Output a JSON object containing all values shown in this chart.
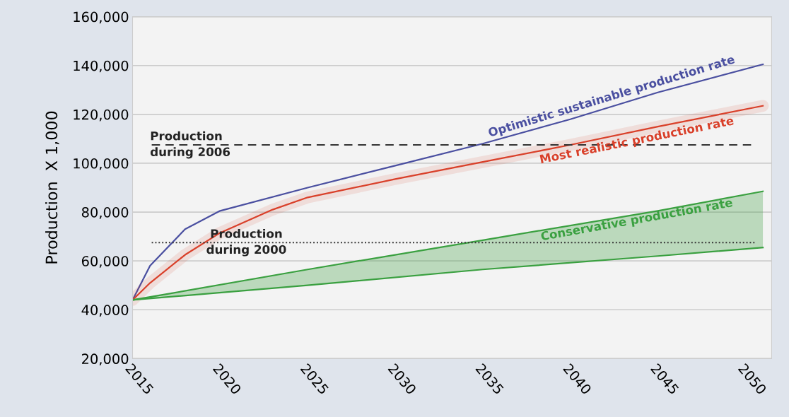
{
  "chart_data": {
    "type": "line",
    "ylabel": "Production  X 1,000",
    "xlim": [
      2015,
      2051.5
    ],
    "xticks": [
      2015,
      2020,
      2025,
      2030,
      2035,
      2040,
      2045,
      2050
    ],
    "ylim": [
      20000,
      160000
    ],
    "yticks": [
      {
        "value": 20000,
        "label": "20,000"
      },
      {
        "value": 40000,
        "label": "40,000"
      },
      {
        "value": 60000,
        "label": "60,000"
      },
      {
        "value": 80000,
        "label": "80,000"
      },
      {
        "value": 100000,
        "label": "100,000"
      },
      {
        "value": 120000,
        "label": "120,000"
      },
      {
        "value": 140000,
        "label": "140,000"
      },
      {
        "value": 160000,
        "label": "160,000"
      }
    ],
    "grid": "y",
    "legend": false,
    "series": [
      {
        "name": "Optimistic sustainable production rate",
        "color": "#4a4fa0",
        "x": [
          2015,
          2016,
          2018,
          2020,
          2025,
          2030,
          2035,
          2040,
          2045,
          2051
        ],
        "values": [
          44000,
          58000,
          73000,
          80500,
          90000,
          99000,
          108000,
          118000,
          129000,
          140500
        ]
      },
      {
        "name": "Most realistic production rate",
        "color": "#d9402a",
        "x": [
          2015,
          2016,
          2018,
          2020,
          2023,
          2025,
          2030,
          2035,
          2040,
          2045,
          2051
        ],
        "values": [
          44000,
          51000,
          62500,
          71500,
          81000,
          86000,
          93500,
          100500,
          107500,
          115000,
          123500
        ]
      },
      {
        "name": "Conservative production rate",
        "color": "#3aa040",
        "x": [
          2015,
          2025,
          2035,
          2045,
          2051
        ],
        "values": [
          44000,
          56500,
          68500,
          80500,
          88500
        ],
        "lower": [
          44000,
          50000,
          56500,
          62000,
          65500
        ],
        "upper": [
          44000,
          56500,
          68500,
          80500,
          88500
        ]
      },
      {
        "color": "#3aa040",
        "x": [
          2015,
          2025,
          2035,
          2045,
          2051
        ],
        "values": [
          44000,
          50000,
          56500,
          62000,
          65500
        ]
      }
    ],
    "ref_lines": [
      {
        "axis": "y",
        "value": 107500,
        "label": "Production\nduring 2006",
        "line_style": "dashed",
        "color": "#333333"
      },
      {
        "axis": "y",
        "value": 67500,
        "label": "Production\nduring 2000",
        "line_style": "dotted",
        "color": "#333333"
      }
    ]
  }
}
